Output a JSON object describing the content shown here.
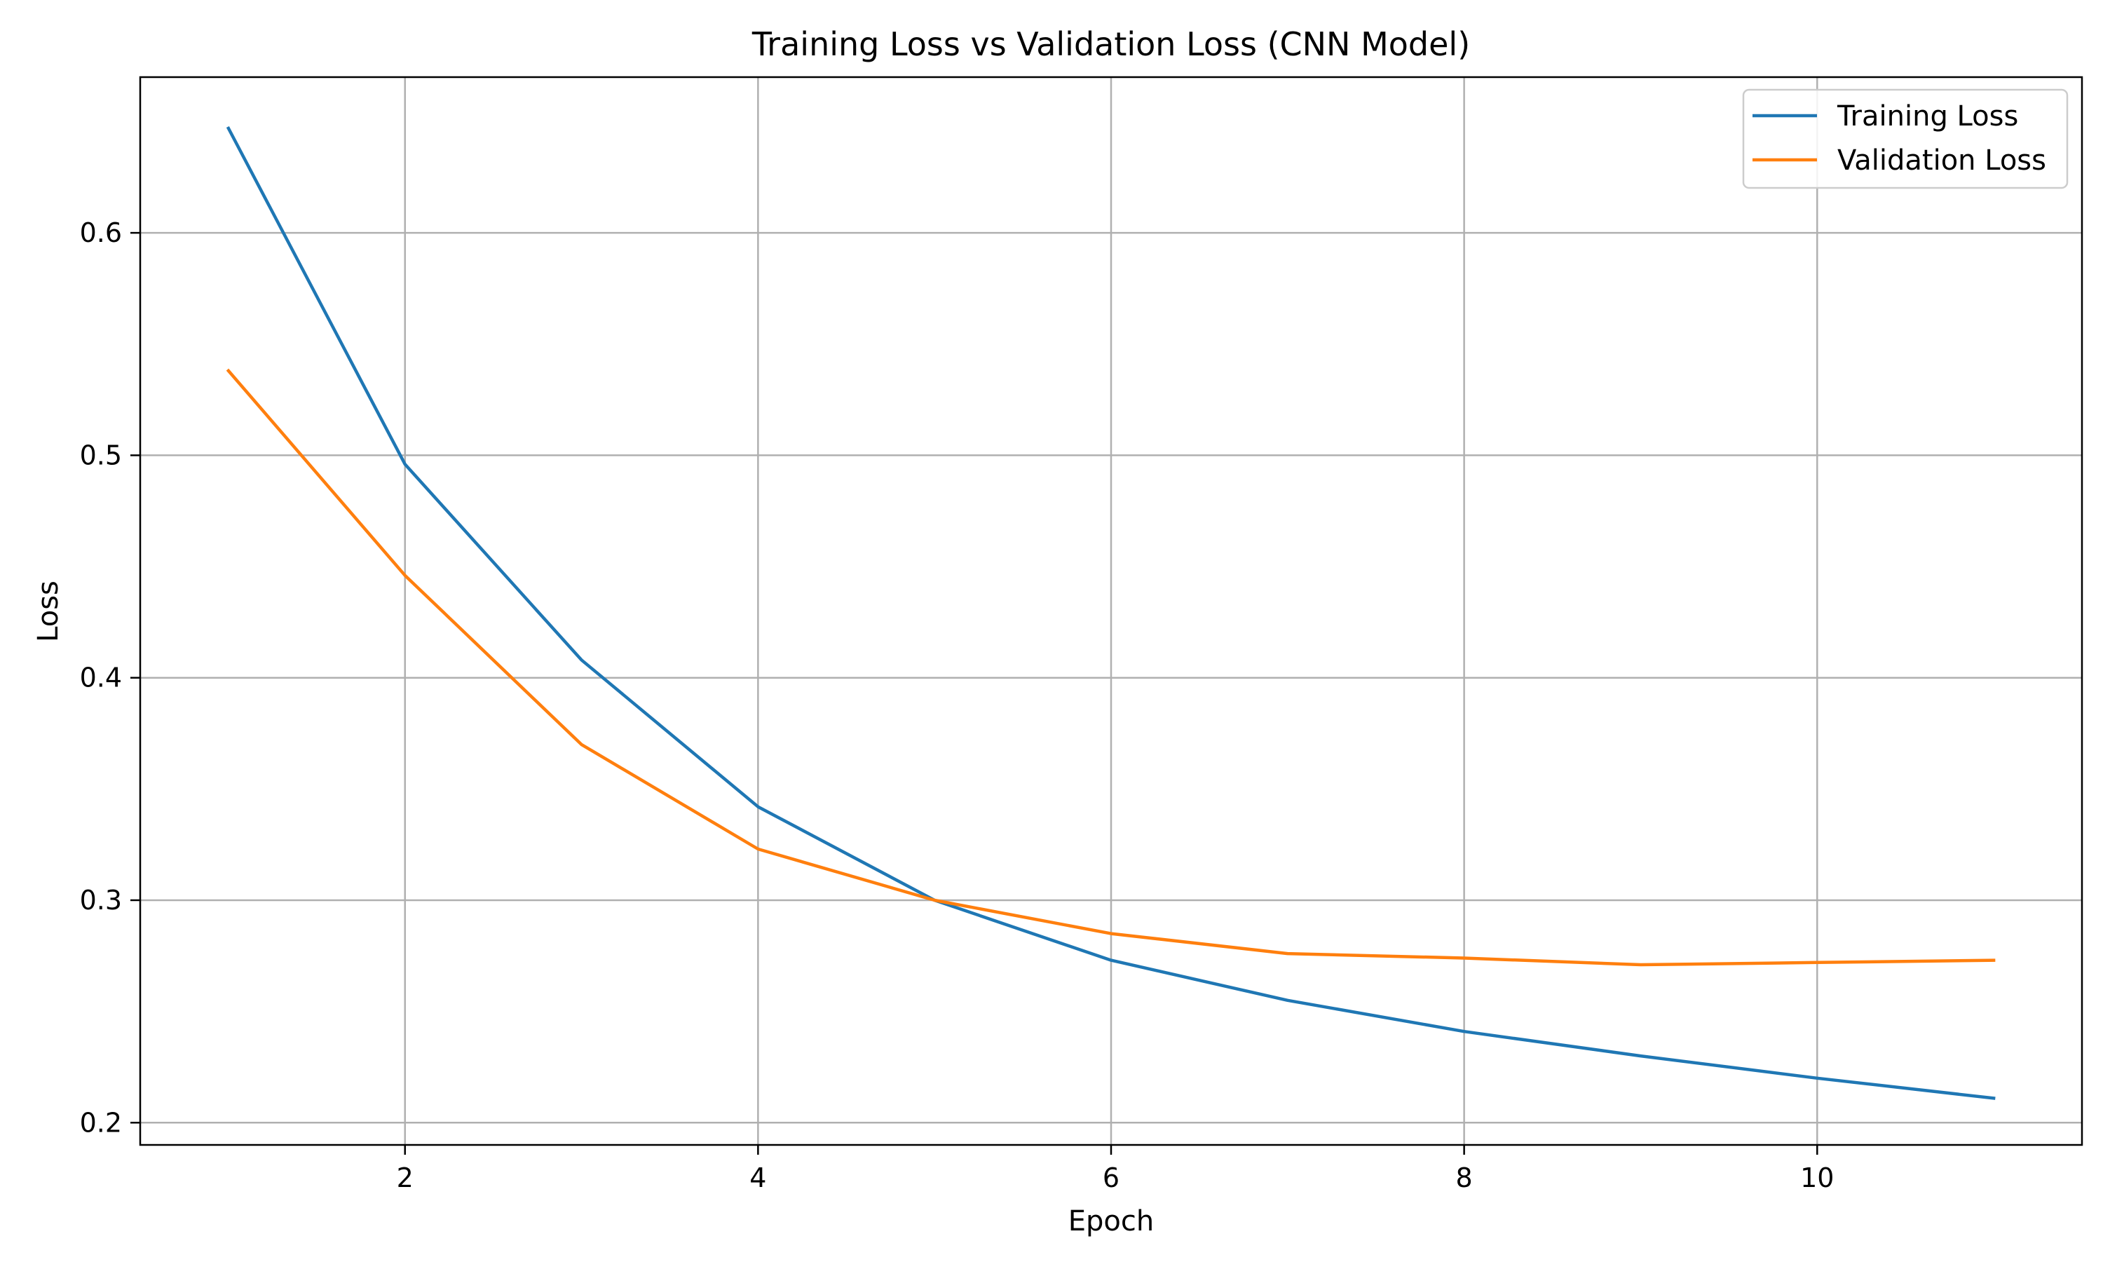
{
  "chart_data": {
    "type": "line",
    "title": "Training Loss vs Validation Loss (CNN Model)",
    "xlabel": "Epoch",
    "ylabel": "Loss",
    "x": [
      1,
      2,
      3,
      4,
      5,
      6,
      7,
      8,
      9,
      10,
      11
    ],
    "xlim": [
      0.5,
      11.5
    ],
    "ylim": [
      0.19,
      0.67
    ],
    "xticks": [
      2,
      4,
      6,
      8,
      10
    ],
    "xtick_labels": [
      "2",
      "4",
      "6",
      "8",
      "10"
    ],
    "yticks": [
      0.2,
      0.3,
      0.4,
      0.5,
      0.6
    ],
    "ytick_labels": [
      "0.2",
      "0.3",
      "0.4",
      "0.5",
      "0.6"
    ],
    "grid": true,
    "legend_position": "top-right",
    "series": [
      {
        "name": "Training Loss",
        "color": "#1f77b4",
        "values": [
          0.647,
          0.496,
          0.408,
          0.342,
          0.3,
          0.273,
          0.255,
          0.241,
          0.23,
          0.22,
          0.211
        ]
      },
      {
        "name": "Validation Loss",
        "color": "#ff7f0e",
        "values": [
          0.538,
          0.446,
          0.37,
          0.323,
          0.3,
          0.285,
          0.276,
          0.274,
          0.271,
          0.272,
          0.273
        ]
      }
    ]
  }
}
